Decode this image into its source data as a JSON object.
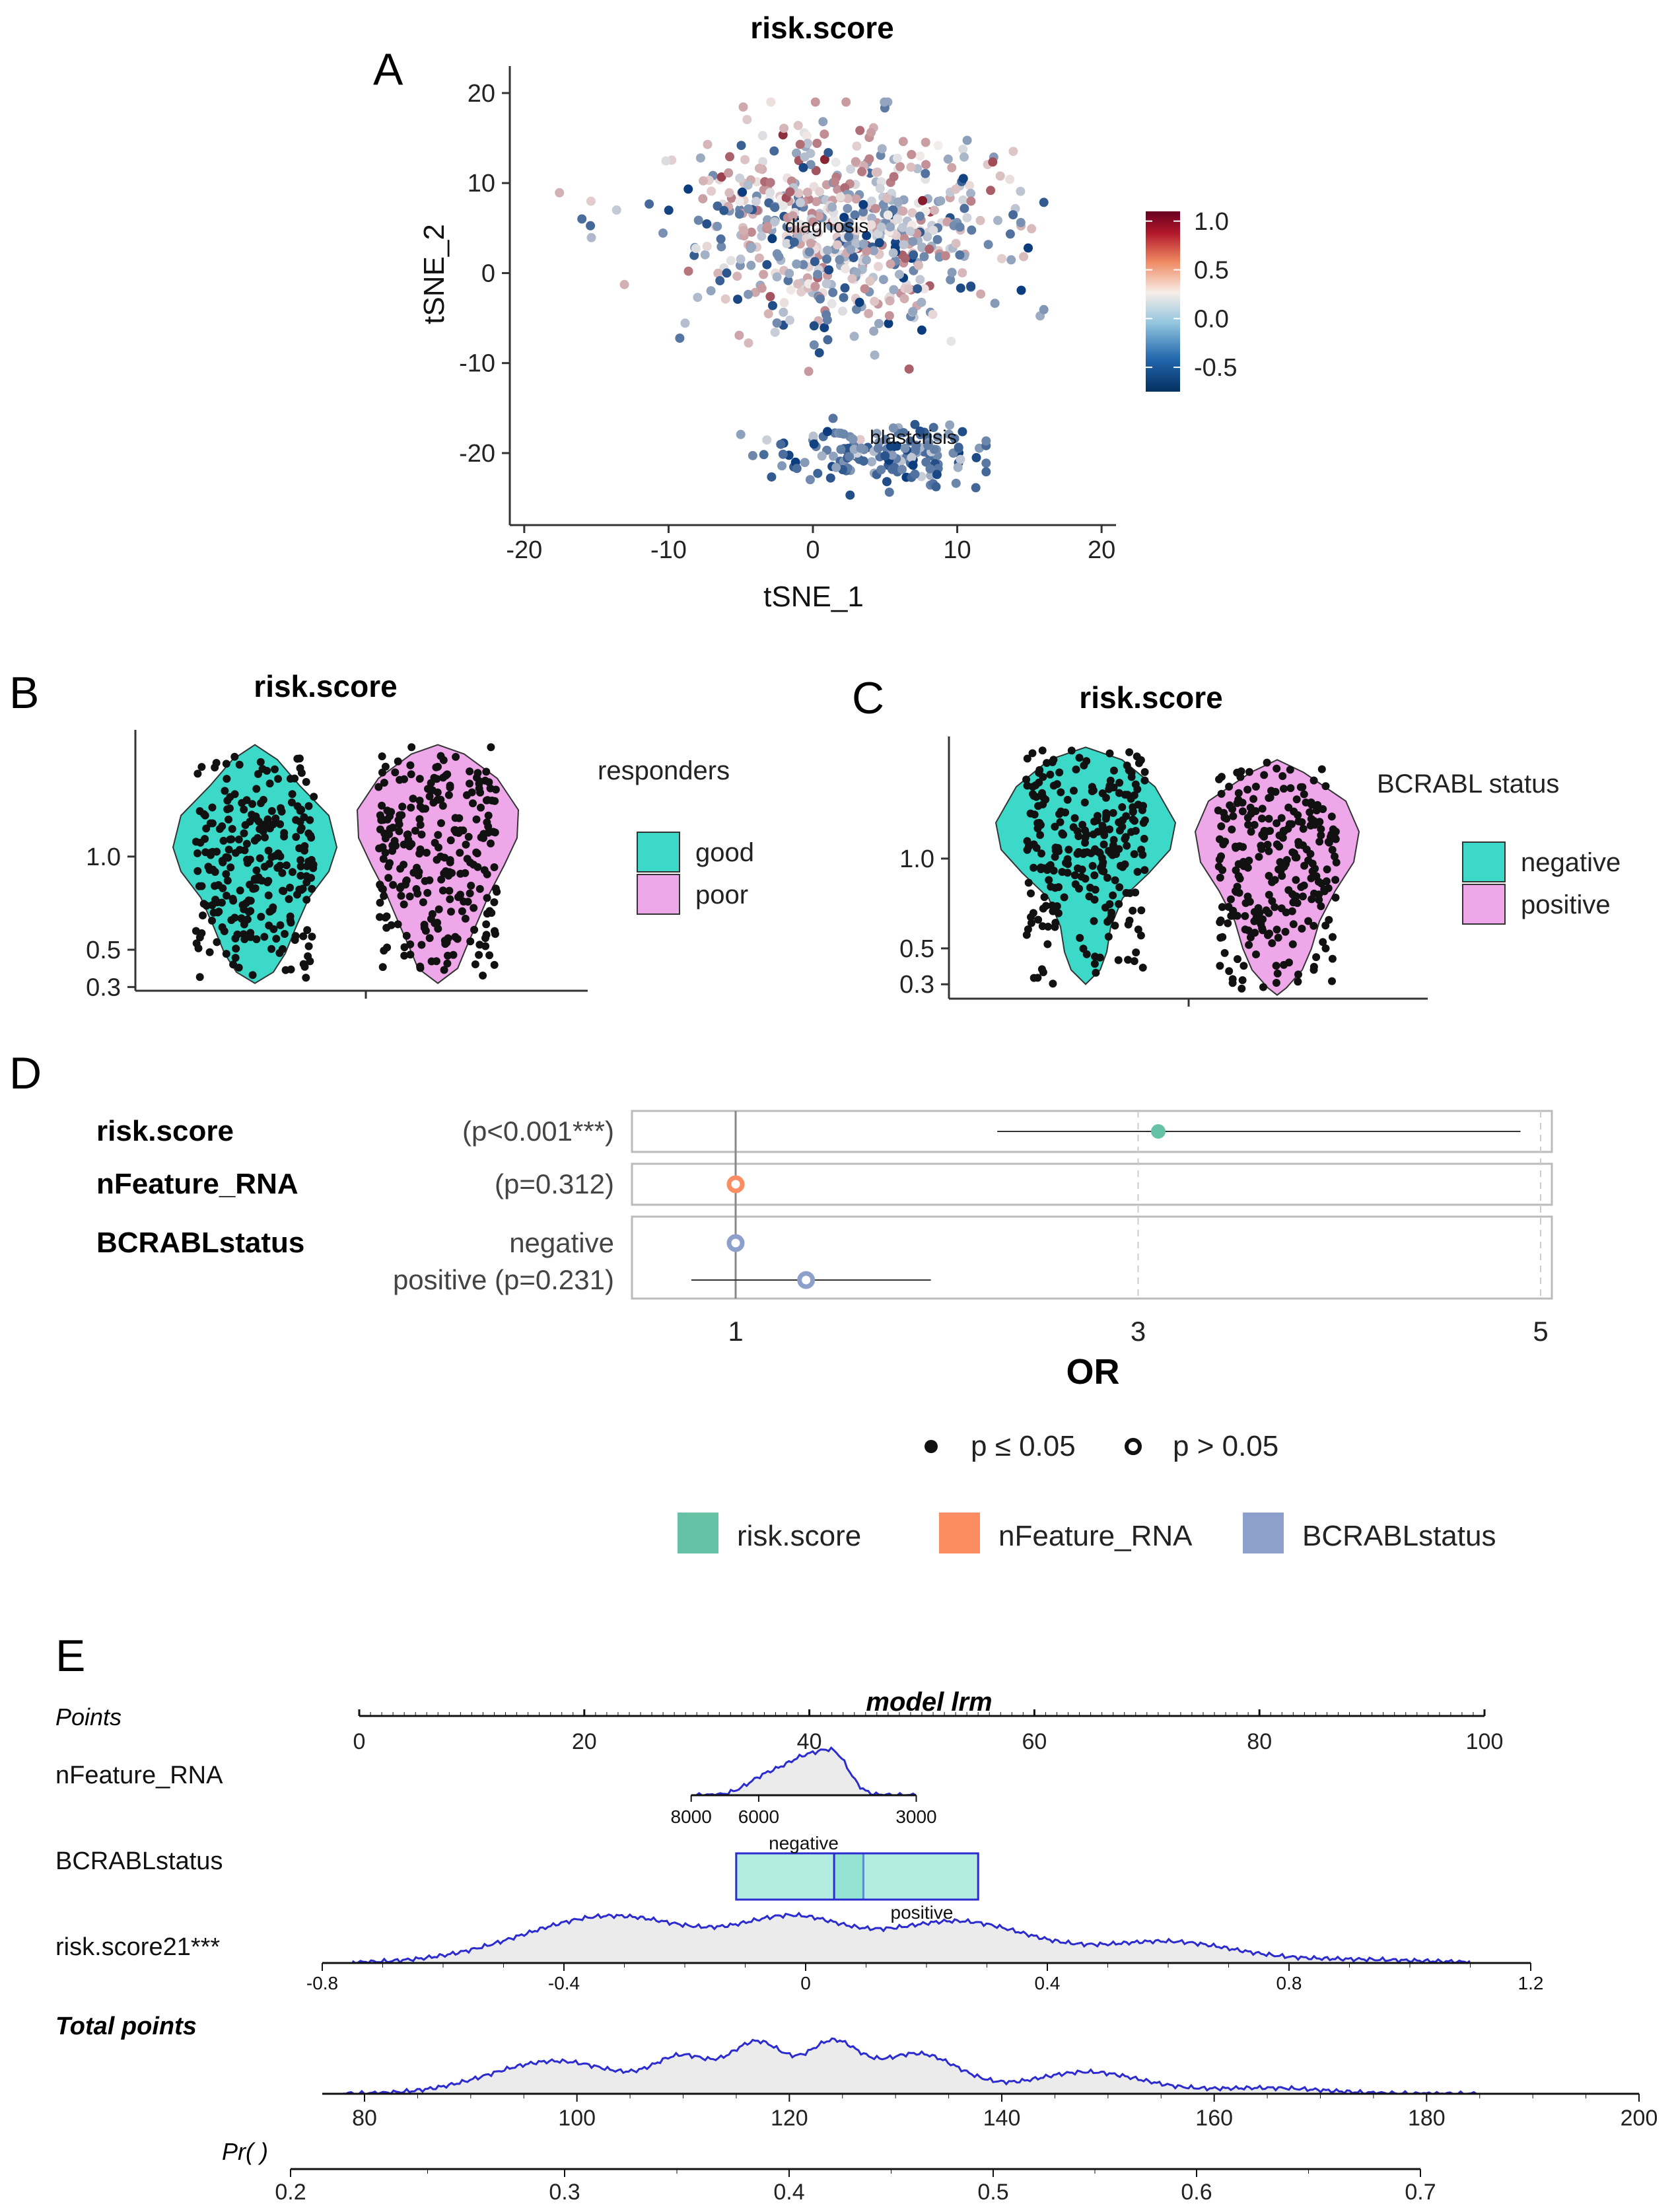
{
  "panels": {
    "A": "A",
    "B": "B",
    "C": "C",
    "D": "D",
    "E": "E"
  },
  "chart_data": [
    {
      "id": "A",
      "type": "scatter",
      "title": "risk.score",
      "xlabel": "tSNE_1",
      "ylabel": "tSNE_2",
      "xlim": [
        -21,
        21
      ],
      "ylim": [
        -28,
        23
      ],
      "xticks": [
        "-20",
        "-10",
        "0",
        "10",
        "20"
      ],
      "yticks": [
        "-20",
        "-10",
        "0",
        "10",
        "20"
      ],
      "annotations": [
        {
          "text": "diagnosis",
          "x": 0.5,
          "y": 5
        },
        {
          "text": "blastcrisis",
          "x": 6.5,
          "y": -18
        }
      ],
      "colorbar": {
        "min": -0.75,
        "max": 1.1,
        "ticks": [
          "1.0",
          "0.5",
          "0.0",
          "-0.5"
        ],
        "low_color": "#0b3c7d",
        "mid_color": "#f3eeec",
        "high_color": "#7d0b1c"
      },
      "clusters": [
        {
          "name": "diagnosis",
          "cx": 2,
          "cy": 5,
          "sx": 7.5,
          "sy": 8,
          "n": 640
        },
        {
          "name": "blastcrisis",
          "cx": 5,
          "cy": -20,
          "sx": 5,
          "sy": 2.3,
          "n": 160
        }
      ]
    },
    {
      "id": "B",
      "type": "violin",
      "title": "risk.score",
      "legend_title": "responders",
      "categories": [
        "good",
        "poor"
      ],
      "colors": [
        "#3cd9c8",
        "#eea7e8"
      ],
      "yticks": [
        "1.0",
        "0.5",
        "0.3"
      ],
      "ytick_values": [
        1.0,
        0.5,
        0.3
      ],
      "ylim": [
        0.28,
        1.68
      ]
    },
    {
      "id": "C",
      "type": "violin",
      "title": "risk.score",
      "legend_title": "BCRABL status",
      "categories": [
        "negative",
        "positive"
      ],
      "colors": [
        "#3cd9c8",
        "#eea7e8"
      ],
      "yticks": [
        "1.0",
        "0.5",
        "0.3"
      ],
      "ytick_values": [
        1.0,
        0.5,
        0.3
      ],
      "ylim": [
        0.22,
        1.68
      ]
    },
    {
      "id": "D",
      "type": "forest",
      "xlabel": "OR",
      "xticks": [
        "1",
        "3",
        "5"
      ],
      "xtick_values": [
        1,
        3,
        5
      ],
      "rows": [
        {
          "variable": "risk.score",
          "label": "(p<0.001***)",
          "or": 3.1,
          "lo": 2.3,
          "hi": 4.9,
          "color": "#66c2a5",
          "significant": true
        },
        {
          "variable": "nFeature_RNA",
          "label": "(p=0.312)",
          "or": 1.0,
          "lo": 0.98,
          "hi": 1.02,
          "color": "#fc8d62",
          "significant": false
        },
        {
          "variable": "BCRABLstatus",
          "label": "negative",
          "or": 1.0,
          "color": "#8da0cb",
          "significant": false
        },
        {
          "variable": "",
          "label": "positive (p=0.231)",
          "or": 1.35,
          "lo": 0.78,
          "hi": 1.97,
          "color": "#8da0cb",
          "significant": false
        }
      ],
      "legend_p": [
        "p ≤ 0.05",
        "p > 0.05"
      ],
      "legend_vars": [
        "risk.score",
        "nFeature_RNA",
        "BCRABLstatus"
      ],
      "legend_colors": [
        "#66c2a5",
        "#fc8d62",
        "#8da0cb"
      ]
    },
    {
      "id": "E",
      "type": "nomogram",
      "title": "model lrm",
      "points_label": "Points",
      "points_ticks": [
        "0",
        "20",
        "40",
        "60",
        "80",
        "100"
      ],
      "points_values": [
        0,
        20,
        40,
        60,
        80,
        100
      ],
      "rows": [
        {
          "name": "nFeature_RNA",
          "ticks": [
            "8000",
            "6000",
            "3000"
          ],
          "tick_points": [
            29.5,
            35.5,
            49.5
          ]
        },
        {
          "name": "BCRABLstatus",
          "levels": [
            "negative",
            "positive"
          ],
          "level_points": [
            [
              33.5,
              44.8
            ],
            [
              42.2,
              55
            ]
          ]
        },
        {
          "name": "risk.score21***",
          "ticks": [
            "-0.8",
            "-0.4",
            "0",
            "0.4",
            "0.8",
            "1.2"
          ],
          "tick_values": [
            -0.8,
            -0.4,
            0,
            0.4,
            0.8,
            1.2
          ]
        }
      ],
      "total_label": "Total points",
      "total_ticks": [
        "80",
        "100",
        "120",
        "140",
        "160",
        "180",
        "200"
      ],
      "total_values": [
        80,
        100,
        120,
        140,
        160,
        180,
        200
      ],
      "pr_label": "Pr( )",
      "pr_ticks": [
        "0.2",
        "0.3",
        "0.4",
        "0.5",
        "0.6",
        "0.7"
      ],
      "pr_values": [
        0.2,
        0.3,
        0.4,
        0.5,
        0.6,
        0.7
      ]
    }
  ]
}
